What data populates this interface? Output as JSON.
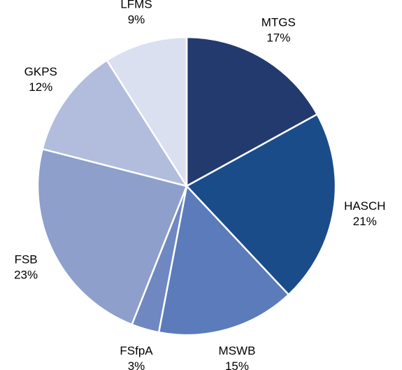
{
  "chart_data": {
    "type": "pie",
    "categories": [
      "MTGS",
      "HASCH",
      "MSWB",
      "FSfpA",
      "FSB",
      "GKPS",
      "LFMS"
    ],
    "values": [
      17,
      21,
      15,
      3,
      23,
      12,
      9
    ],
    "value_labels": [
      "17%",
      "21%",
      "15%",
      "3%",
      "23%",
      "12%",
      "9%"
    ],
    "colors": [
      "#233a6e",
      "#1a4c8a",
      "#5b7bbb",
      "#6f88c2",
      "#8e9fcb",
      "#b2bddd",
      "#dbe0f0"
    ]
  }
}
